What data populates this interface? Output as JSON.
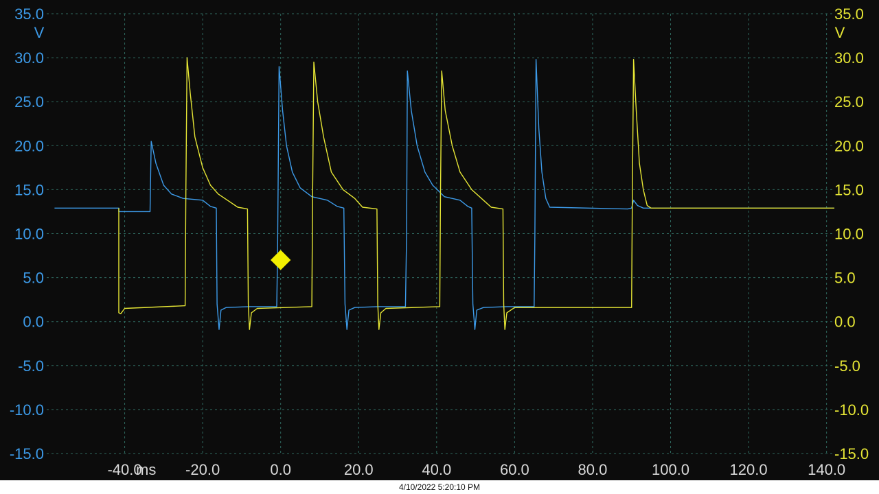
{
  "chart_data": {
    "type": "line",
    "title": "",
    "xlabel": "",
    "x_unit": "ms",
    "xlim": [
      -60,
      142
    ],
    "x_ticks": [
      "-40.0",
      "-20.0",
      "0.0",
      "20.0",
      "40.0",
      "60.0",
      "80.0",
      "100.0",
      "120.0",
      "140.0"
    ],
    "x_tick_values": [
      -40,
      -20,
      0,
      20,
      40,
      60,
      80,
      100,
      120,
      140
    ],
    "left_axis": {
      "unit": "V",
      "ylim": [
        -15,
        35
      ],
      "ticks": [
        "35.0",
        "30.0",
        "25.0",
        "20.0",
        "15.0",
        "10.0",
        "5.0",
        "0.0",
        "-5.0",
        "-10.0",
        "-15.0"
      ],
      "tick_values": [
        35,
        30,
        25,
        20,
        15,
        10,
        5,
        0,
        -5,
        -10,
        -15
      ]
    },
    "right_axis": {
      "unit": "V",
      "ylim": [
        -15,
        35
      ],
      "ticks": [
        "35.0",
        "30.0",
        "25.0",
        "20.0",
        "15.0",
        "10.0",
        "5.0",
        "0.0",
        "-5.0",
        "-10.0",
        "-15.0"
      ],
      "tick_values": [
        35,
        30,
        25,
        20,
        15,
        10,
        5,
        0,
        -5,
        -10,
        -15
      ]
    },
    "grid": true,
    "trigger_marker": {
      "x": 0,
      "y": 7
    },
    "series": [
      {
        "color": "#3d9be9",
        "points": [
          [
            -58,
            12.9
          ],
          [
            -41.5,
            12.9
          ],
          [
            -41.5,
            12.5
          ],
          [
            -33.5,
            12.5
          ],
          [
            -33.2,
            20.5
          ],
          [
            -32,
            18
          ],
          [
            -30,
            15.5
          ],
          [
            -28,
            14.5
          ],
          [
            -25,
            14
          ],
          [
            -20,
            13.8
          ],
          [
            -18,
            13.1
          ],
          [
            -16.5,
            12.9
          ],
          [
            -16.3,
            2
          ],
          [
            -15.8,
            -0.9
          ],
          [
            -15.3,
            1.3
          ],
          [
            -14,
            1.6
          ],
          [
            -8,
            1.7
          ],
          [
            -1,
            1.7
          ],
          [
            -0.8,
            8
          ],
          [
            -0.4,
            29
          ],
          [
            0.5,
            24
          ],
          [
            1.5,
            20
          ],
          [
            3,
            17
          ],
          [
            5,
            15.2
          ],
          [
            8,
            14.2
          ],
          [
            12,
            13.8
          ],
          [
            14.5,
            13.1
          ],
          [
            16.2,
            12.9
          ],
          [
            16.5,
            2
          ],
          [
            17,
            -0.9
          ],
          [
            17.5,
            1.3
          ],
          [
            19,
            1.6
          ],
          [
            25,
            1.7
          ],
          [
            32,
            1.7
          ],
          [
            32.3,
            10
          ],
          [
            32.5,
            28.5
          ],
          [
            33.5,
            24
          ],
          [
            35,
            20
          ],
          [
            37,
            17
          ],
          [
            39,
            15.5
          ],
          [
            42,
            14.2
          ],
          [
            46,
            13.8
          ],
          [
            48,
            13.1
          ],
          [
            49,
            12.9
          ],
          [
            49.3,
            2
          ],
          [
            49.8,
            -0.9
          ],
          [
            50.3,
            1.3
          ],
          [
            52,
            1.6
          ],
          [
            58,
            1.7
          ],
          [
            65,
            1.7
          ],
          [
            65.2,
            10
          ],
          [
            65.5,
            29.8
          ],
          [
            66.2,
            22
          ],
          [
            67,
            17
          ],
          [
            68,
            14
          ],
          [
            69,
            13
          ],
          [
            89,
            12.8
          ],
          [
            90,
            12.9
          ],
          [
            90.5,
            13.8
          ],
          [
            91.5,
            13.2
          ],
          [
            93,
            12.9
          ],
          [
            142,
            12.9
          ]
        ]
      },
      {
        "color": "#e6e635",
        "points": [
          [
            -41.5,
            12.9
          ],
          [
            -41.5,
            1
          ],
          [
            -41,
            0.9
          ],
          [
            -40,
            1.5
          ],
          [
            -24.5,
            1.8
          ],
          [
            -24.3,
            15
          ],
          [
            -24,
            30
          ],
          [
            -23.2,
            26
          ],
          [
            -22,
            21
          ],
          [
            -20,
            17.5
          ],
          [
            -18,
            15.5
          ],
          [
            -16,
            14.5
          ],
          [
            -13,
            13.6
          ],
          [
            -11,
            13
          ],
          [
            -8.5,
            12.8
          ],
          [
            -8.3,
            2
          ],
          [
            -8,
            -0.9
          ],
          [
            -7.5,
            1
          ],
          [
            -6,
            1.5
          ],
          [
            8,
            1.7
          ],
          [
            8.2,
            15
          ],
          [
            8.5,
            29.5
          ],
          [
            9.5,
            25
          ],
          [
            11,
            21
          ],
          [
            13,
            17
          ],
          [
            16,
            15
          ],
          [
            19,
            14
          ],
          [
            21,
            13
          ],
          [
            24.7,
            12.8
          ],
          [
            24.9,
            2
          ],
          [
            25.2,
            -0.9
          ],
          [
            25.7,
            1
          ],
          [
            27,
            1.5
          ],
          [
            40.8,
            1.7
          ],
          [
            41,
            15
          ],
          [
            41.3,
            28.5
          ],
          [
            42.2,
            24
          ],
          [
            44,
            20
          ],
          [
            46,
            17
          ],
          [
            49,
            15
          ],
          [
            52,
            13.8
          ],
          [
            54,
            13
          ],
          [
            57,
            12.8
          ],
          [
            57.2,
            2
          ],
          [
            57.5,
            -0.9
          ],
          [
            58,
            1
          ],
          [
            60,
            1.6
          ],
          [
            90,
            1.6
          ],
          [
            90.2,
            15
          ],
          [
            90.5,
            29.8
          ],
          [
            91.2,
            24
          ],
          [
            92,
            18
          ],
          [
            93,
            15
          ],
          [
            94,
            13.2
          ],
          [
            95,
            12.9
          ],
          [
            142,
            12.9
          ]
        ]
      }
    ]
  },
  "footer": {
    "timestamp": "4/10/2022 5:20:10 PM"
  }
}
